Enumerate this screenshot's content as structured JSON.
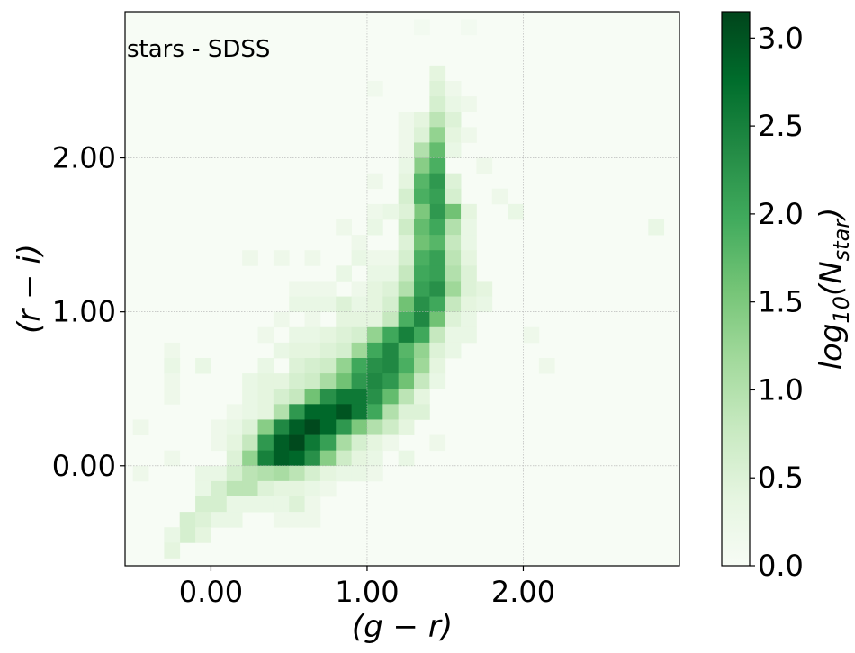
{
  "chart_data": {
    "type": "heatmap",
    "annotation": "stars - SDSS",
    "xlabel": "(g − r)",
    "ylabel": "(r − i)",
    "xlim": [
      -0.55,
      3.0
    ],
    "ylim": [
      -0.65,
      2.95
    ],
    "xticks": [
      0.0,
      1.0,
      2.0
    ],
    "xtick_labels": [
      "0.00",
      "1.00",
      "2.00"
    ],
    "yticks": [
      0.0,
      1.0,
      2.0
    ],
    "ytick_labels": [
      "0.00",
      "1.00",
      "2.00"
    ],
    "grid": true,
    "bin_size": 0.1,
    "colormap": "Greens",
    "colormap_stops": [
      "#f7fcf5",
      "#e5f5e0",
      "#c7e9c0",
      "#a1d99b",
      "#74c476",
      "#41ab5d",
      "#238b45",
      "#006d2c",
      "#00441b"
    ],
    "colorbar": {
      "label": "log10(N_star)",
      "label_parts": {
        "base": "log",
        "sub1": "10",
        "open": "(N",
        "sub2": "star",
        "close": ")"
      },
      "range": [
        0.0,
        3.15
      ],
      "ticks": [
        0.0,
        0.5,
        1.0,
        1.5,
        2.0,
        2.5,
        3.0
      ],
      "tick_labels": [
        "0.0",
        "0.5",
        "1.0",
        "1.5",
        "2.0",
        "2.5",
        "3.0"
      ]
    },
    "cells": [
      [
        1.3,
        2.8,
        0.1
      ],
      [
        1.6,
        2.8,
        0.1
      ],
      [
        1.4,
        2.5,
        0.4
      ],
      [
        1.4,
        2.4,
        0.5
      ],
      [
        1.5,
        2.4,
        0.2
      ],
      [
        1.0,
        2.4,
        0.15
      ],
      [
        1.5,
        2.3,
        0.3
      ],
      [
        1.4,
        2.3,
        0.6
      ],
      [
        1.6,
        2.3,
        0.2
      ],
      [
        1.2,
        2.2,
        0.2
      ],
      [
        1.3,
        2.2,
        0.4
      ],
      [
        1.4,
        2.2,
        0.9
      ],
      [
        1.5,
        2.2,
        0.5
      ],
      [
        1.2,
        2.1,
        0.2
      ],
      [
        1.3,
        2.1,
        0.5
      ],
      [
        1.4,
        2.1,
        1.3
      ],
      [
        1.5,
        2.1,
        0.4
      ],
      [
        1.6,
        2.1,
        0.2
      ],
      [
        1.2,
        2.0,
        0.2
      ],
      [
        1.3,
        2.0,
        1.0
      ],
      [
        1.4,
        2.0,
        1.7
      ],
      [
        1.5,
        2.0,
        0.3
      ],
      [
        1.3,
        1.9,
        1.4
      ],
      [
        1.4,
        1.9,
        1.9
      ],
      [
        1.2,
        1.9,
        0.3
      ],
      [
        1.7,
        1.9,
        0.2
      ],
      [
        1.0,
        1.8,
        0.2
      ],
      [
        1.2,
        1.8,
        0.4
      ],
      [
        1.3,
        1.8,
        1.8
      ],
      [
        1.4,
        1.8,
        2.2
      ],
      [
        1.5,
        1.8,
        0.5
      ],
      [
        1.2,
        1.7,
        0.6
      ],
      [
        1.3,
        1.7,
        1.9
      ],
      [
        1.4,
        1.7,
        2.1
      ],
      [
        1.5,
        1.7,
        0.6
      ],
      [
        1.8,
        1.7,
        0.2
      ],
      [
        1.4,
        1.6,
        2.2
      ],
      [
        1.3,
        1.6,
        1.5
      ],
      [
        1.5,
        1.6,
        1.6
      ],
      [
        1.2,
        1.6,
        0.5
      ],
      [
        1.1,
        1.6,
        0.3
      ],
      [
        1.0,
        1.6,
        0.2
      ],
      [
        1.6,
        1.6,
        0.4
      ],
      [
        1.9,
        1.6,
        0.3
      ],
      [
        0.8,
        1.5,
        0.2
      ],
      [
        1.0,
        1.5,
        0.3
      ],
      [
        1.2,
        1.5,
        0.7
      ],
      [
        1.3,
        1.5,
        1.7
      ],
      [
        1.4,
        1.5,
        2.0
      ],
      [
        1.5,
        1.5,
        1.0
      ],
      [
        1.6,
        1.5,
        0.3
      ],
      [
        2.8,
        1.5,
        0.3
      ],
      [
        0.9,
        1.4,
        0.2
      ],
      [
        1.2,
        1.4,
        0.5
      ],
      [
        1.3,
        1.4,
        1.6
      ],
      [
        1.4,
        1.4,
        1.8
      ],
      [
        1.5,
        1.4,
        0.8
      ],
      [
        1.6,
        1.4,
        0.3
      ],
      [
        0.2,
        1.3,
        0.2
      ],
      [
        0.4,
        1.3,
        0.2
      ],
      [
        0.6,
        1.3,
        0.2
      ],
      [
        0.9,
        1.3,
        0.3
      ],
      [
        1.0,
        1.3,
        0.2
      ],
      [
        1.1,
        1.3,
        0.2
      ],
      [
        1.2,
        1.3,
        0.6
      ],
      [
        1.3,
        1.3,
        1.9
      ],
      [
        1.4,
        1.3,
        2.1
      ],
      [
        1.5,
        1.3,
        0.9
      ],
      [
        1.6,
        1.3,
        0.4
      ],
      [
        0.8,
        1.2,
        0.3
      ],
      [
        1.0,
        1.2,
        0.3
      ],
      [
        1.1,
        1.2,
        0.3
      ],
      [
        1.2,
        1.2,
        0.8
      ],
      [
        1.3,
        1.2,
        2.0
      ],
      [
        1.4,
        1.2,
        2.1
      ],
      [
        1.5,
        1.2,
        1.0
      ],
      [
        1.6,
        1.2,
        0.5
      ],
      [
        0.5,
        1.1,
        0.2
      ],
      [
        0.6,
        1.1,
        0.2
      ],
      [
        0.7,
        1.1,
        0.2
      ],
      [
        0.9,
        1.1,
        0.2
      ],
      [
        1.0,
        1.1,
        0.4
      ],
      [
        1.1,
        1.1,
        0.5
      ],
      [
        1.2,
        1.1,
        1.0
      ],
      [
        1.3,
        1.1,
        2.1
      ],
      [
        1.4,
        1.1,
        2.3
      ],
      [
        1.5,
        1.1,
        1.2
      ],
      [
        1.6,
        1.1,
        0.5
      ],
      [
        1.7,
        1.1,
        0.4
      ],
      [
        0.5,
        1.0,
        0.3
      ],
      [
        0.6,
        1.0,
        0.3
      ],
      [
        0.7,
        1.0,
        0.3
      ],
      [
        0.8,
        1.0,
        0.5
      ],
      [
        0.9,
        1.0,
        0.3
      ],
      [
        1.0,
        1.0,
        0.4
      ],
      [
        1.1,
        1.0,
        0.6
      ],
      [
        1.2,
        1.0,
        1.6
      ],
      [
        1.3,
        1.0,
        2.3
      ],
      [
        1.4,
        1.0,
        2.0
      ],
      [
        1.5,
        1.0,
        0.8
      ],
      [
        1.6,
        1.0,
        0.4
      ],
      [
        1.7,
        1.0,
        0.3
      ],
      [
        0.4,
        0.9,
        0.2
      ],
      [
        0.6,
        0.9,
        0.2
      ],
      [
        0.8,
        0.9,
        0.4
      ],
      [
        0.9,
        0.9,
        0.4
      ],
      [
        1.0,
        0.9,
        0.4
      ],
      [
        1.1,
        0.9,
        0.8
      ],
      [
        1.2,
        0.9,
        1.9
      ],
      [
        1.3,
        0.9,
        2.4
      ],
      [
        1.4,
        0.9,
        1.6
      ],
      [
        1.5,
        0.9,
        0.5
      ],
      [
        1.6,
        0.9,
        0.3
      ],
      [
        0.3,
        0.8,
        0.2
      ],
      [
        0.5,
        0.8,
        0.3
      ],
      [
        0.6,
        0.8,
        0.3
      ],
      [
        0.7,
        0.8,
        0.4
      ],
      [
        0.8,
        0.8,
        0.5
      ],
      [
        0.9,
        0.8,
        0.6
      ],
      [
        1.0,
        0.8,
        1.3
      ],
      [
        1.1,
        0.8,
        2.0
      ],
      [
        1.2,
        0.8,
        2.5
      ],
      [
        1.3,
        0.8,
        2.0
      ],
      [
        1.4,
        0.8,
        0.8
      ],
      [
        1.5,
        0.8,
        0.3
      ],
      [
        1.6,
        0.8,
        0.3
      ],
      [
        2.0,
        0.8,
        0.2
      ],
      [
        -0.3,
        0.7,
        0.2
      ],
      [
        0.4,
        0.7,
        0.3
      ],
      [
        0.5,
        0.7,
        0.4
      ],
      [
        0.6,
        0.7,
        0.4
      ],
      [
        0.7,
        0.7,
        0.5
      ],
      [
        0.8,
        0.7,
        0.6
      ],
      [
        0.9,
        0.7,
        1.2
      ],
      [
        1.0,
        0.7,
        2.0
      ],
      [
        1.1,
        0.7,
        2.4
      ],
      [
        1.2,
        0.7,
        1.8
      ],
      [
        1.3,
        0.7,
        1.3
      ],
      [
        1.4,
        0.7,
        0.5
      ],
      [
        1.5,
        0.7,
        0.3
      ],
      [
        -0.3,
        0.6,
        0.3
      ],
      [
        -0.1,
        0.6,
        0.3
      ],
      [
        0.3,
        0.6,
        0.3
      ],
      [
        0.5,
        0.6,
        0.5
      ],
      [
        0.6,
        0.6,
        0.6
      ],
      [
        0.7,
        0.6,
        0.7
      ],
      [
        0.8,
        0.6,
        1.3
      ],
      [
        0.9,
        0.6,
        2.0
      ],
      [
        1.0,
        0.6,
        2.3
      ],
      [
        1.1,
        0.6,
        2.4
      ],
      [
        1.2,
        0.6,
        1.9
      ],
      [
        1.3,
        0.6,
        1.2
      ],
      [
        1.4,
        0.6,
        0.4
      ],
      [
        2.1,
        0.6,
        0.2
      ],
      [
        -0.3,
        0.5,
        0.2
      ],
      [
        0.2,
        0.5,
        0.3
      ],
      [
        0.3,
        0.5,
        0.4
      ],
      [
        0.4,
        0.5,
        0.4
      ],
      [
        0.5,
        0.5,
        0.6
      ],
      [
        0.6,
        0.5,
        0.7
      ],
      [
        0.7,
        0.5,
        1.1
      ],
      [
        0.8,
        0.5,
        1.6
      ],
      [
        0.9,
        0.5,
        2.2
      ],
      [
        1.0,
        0.5,
        2.4
      ],
      [
        1.1,
        0.5,
        2.2
      ],
      [
        1.2,
        0.5,
        1.6
      ],
      [
        1.3,
        0.5,
        0.8
      ],
      [
        1.4,
        0.5,
        0.3
      ],
      [
        -0.3,
        0.4,
        0.2
      ],
      [
        0.2,
        0.4,
        0.3
      ],
      [
        0.3,
        0.4,
        0.4
      ],
      [
        0.4,
        0.4,
        0.6
      ],
      [
        0.5,
        0.4,
        0.8
      ],
      [
        0.6,
        0.4,
        1.6
      ],
      [
        0.7,
        0.4,
        2.3
      ],
      [
        0.8,
        0.4,
        2.6
      ],
      [
        0.9,
        0.4,
        2.6
      ],
      [
        1.0,
        0.4,
        2.3
      ],
      [
        1.1,
        0.4,
        1.7
      ],
      [
        1.2,
        0.4,
        0.9
      ],
      [
        1.3,
        0.4,
        0.4
      ],
      [
        0.1,
        0.3,
        0.2
      ],
      [
        0.2,
        0.3,
        0.3
      ],
      [
        0.3,
        0.3,
        0.4
      ],
      [
        0.4,
        0.3,
        1.0
      ],
      [
        0.5,
        0.3,
        2.2
      ],
      [
        0.6,
        0.3,
        2.8
      ],
      [
        0.7,
        0.3,
        2.8
      ],
      [
        0.8,
        0.3,
        3.0
      ],
      [
        0.9,
        0.3,
        2.6
      ],
      [
        1.0,
        0.3,
        2.0
      ],
      [
        1.1,
        0.3,
        1.0
      ],
      [
        1.2,
        0.3,
        0.5
      ],
      [
        1.3,
        0.3,
        0.5
      ],
      [
        -0.5,
        0.2,
        0.2
      ],
      [
        0.0,
        0.2,
        0.2
      ],
      [
        0.1,
        0.2,
        0.3
      ],
      [
        0.2,
        0.2,
        0.5
      ],
      [
        0.3,
        0.2,
        1.4
      ],
      [
        0.4,
        0.2,
        2.4
      ],
      [
        0.5,
        0.2,
        2.9
      ],
      [
        0.6,
        0.2,
        3.1
      ],
      [
        0.7,
        0.2,
        2.8
      ],
      [
        0.8,
        0.2,
        2.2
      ],
      [
        0.9,
        0.2,
        1.5
      ],
      [
        1.0,
        0.2,
        1.0
      ],
      [
        1.1,
        0.2,
        0.7
      ],
      [
        1.2,
        0.2,
        0.4
      ],
      [
        0.0,
        0.1,
        0.2
      ],
      [
        0.1,
        0.1,
        0.4
      ],
      [
        0.2,
        0.1,
        0.8
      ],
      [
        0.3,
        0.1,
        2.2
      ],
      [
        0.4,
        0.1,
        2.9
      ],
      [
        0.5,
        0.1,
        3.1
      ],
      [
        0.6,
        0.1,
        2.6
      ],
      [
        0.7,
        0.1,
        2.1
      ],
      [
        0.8,
        0.1,
        1.1
      ],
      [
        0.9,
        0.1,
        0.6
      ],
      [
        1.0,
        0.1,
        0.4
      ],
      [
        1.1,
        0.1,
        0.2
      ],
      [
        1.4,
        0.1,
        0.2
      ],
      [
        -0.3,
        0.0,
        0.2
      ],
      [
        0.1,
        0.0,
        0.5
      ],
      [
        0.2,
        0.0,
        1.3
      ],
      [
        0.3,
        0.0,
        2.5
      ],
      [
        0.4,
        0.0,
        2.9
      ],
      [
        0.5,
        0.0,
        2.8
      ],
      [
        0.6,
        0.0,
        2.3
      ],
      [
        0.7,
        0.0,
        1.4
      ],
      [
        0.8,
        0.0,
        0.7
      ],
      [
        0.9,
        0.0,
        0.4
      ],
      [
        1.0,
        0.0,
        0.3
      ],
      [
        1.2,
        0.0,
        0.3
      ],
      [
        -0.5,
        -0.1,
        0.2
      ],
      [
        -0.1,
        -0.1,
        0.3
      ],
      [
        0.0,
        -0.1,
        0.3
      ],
      [
        0.1,
        -0.1,
        0.6
      ],
      [
        0.2,
        -0.1,
        0.9
      ],
      [
        0.3,
        -0.1,
        1.0
      ],
      [
        0.4,
        -0.1,
        1.1
      ],
      [
        0.5,
        -0.1,
        0.9
      ],
      [
        0.6,
        -0.1,
        0.6
      ],
      [
        0.7,
        -0.1,
        0.4
      ],
      [
        0.8,
        -0.1,
        0.3
      ],
      [
        0.9,
        -0.1,
        0.3
      ],
      [
        1.0,
        -0.1,
        0.2
      ],
      [
        -0.1,
        -0.2,
        0.3
      ],
      [
        0.0,
        -0.2,
        0.6
      ],
      [
        0.1,
        -0.2,
        0.9
      ],
      [
        0.2,
        -0.2,
        0.9
      ],
      [
        0.3,
        -0.2,
        0.5
      ],
      [
        0.4,
        -0.2,
        0.4
      ],
      [
        0.5,
        -0.2,
        0.4
      ],
      [
        0.6,
        -0.2,
        0.3
      ],
      [
        0.7,
        -0.2,
        0.2
      ],
      [
        -0.1,
        -0.3,
        0.6
      ],
      [
        0.0,
        -0.3,
        0.6
      ],
      [
        0.1,
        -0.3,
        0.3
      ],
      [
        0.2,
        -0.3,
        0.3
      ],
      [
        0.3,
        -0.3,
        0.3
      ],
      [
        0.4,
        -0.3,
        0.3
      ],
      [
        0.5,
        -0.3,
        0.5
      ],
      [
        0.6,
        -0.3,
        0.2
      ],
      [
        -0.2,
        -0.4,
        0.6
      ],
      [
        -0.1,
        -0.4,
        0.5
      ],
      [
        0.0,
        -0.4,
        0.3
      ],
      [
        0.1,
        -0.4,
        0.3
      ],
      [
        0.4,
        -0.4,
        0.2
      ],
      [
        0.5,
        -0.4,
        0.2
      ],
      [
        0.6,
        -0.4,
        0.2
      ],
      [
        -0.2,
        -0.5,
        0.6
      ],
      [
        -0.1,
        -0.5,
        0.4
      ],
      [
        -0.3,
        -0.5,
        0.3
      ],
      [
        -0.3,
        -0.6,
        0.4
      ]
    ]
  }
}
